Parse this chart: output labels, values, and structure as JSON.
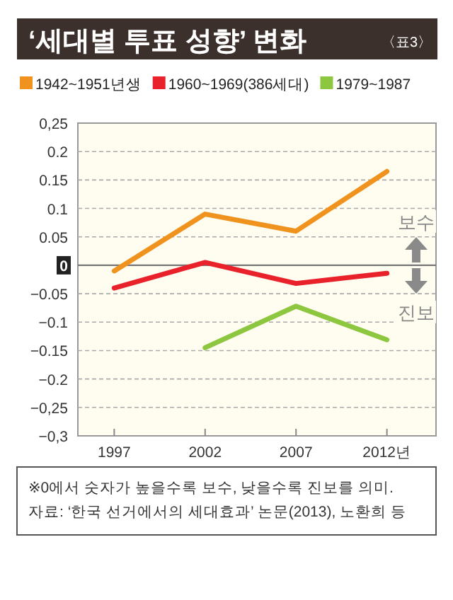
{
  "chart_data": {
    "type": "line",
    "title": "‘세대별 투표 성향’ 변화",
    "x": [
      1997,
      2002,
      2007,
      2012
    ],
    "series": [
      {
        "name": "1942~1951년생",
        "color": "#f0931e",
        "values": [
          -0.01,
          0.09,
          0.06,
          0.165
        ]
      },
      {
        "name": "1960~1969(386세대)",
        "color": "#e8212b",
        "values": [
          -0.04,
          0.005,
          -0.032,
          -0.014
        ]
      },
      {
        "name": "1979~1987",
        "color": "#8dc63f",
        "values": [
          null,
          -0.145,
          -0.072,
          -0.131
        ]
      }
    ],
    "xlim": [
      1995,
      2014.7
    ],
    "xticks": [
      1997,
      2002,
      2007,
      {
        "value": 2012,
        "label": "2012년"
      }
    ],
    "ylim": [
      -0.3,
      0.25
    ],
    "yticks": [
      {
        "value": 0.25,
        "label": "0,25"
      },
      0.2,
      0.15,
      0.1,
      0.05,
      0,
      {
        "value": -0.05,
        "label": "−0.05"
      },
      {
        "value": -0.1,
        "label": "−0.1"
      },
      {
        "value": -0.15,
        "label": "−0.15"
      },
      {
        "value": -0.2,
        "label": "−0.2"
      },
      {
        "value": -0.25,
        "label": "−0,25"
      },
      {
        "value": -0.3,
        "label": "−0,3"
      }
    ],
    "ref_lines": [
      {
        "axis": "y",
        "value": 0,
        "label": null,
        "color": "#777777"
      }
    ],
    "grid": "y",
    "legend": "top",
    "marker": "none",
    "line_style": "solid",
    "annotations": [
      "〈표3〉",
      "보수",
      "진보",
      "※0에서 숫자가 높을수록 보수, 낮을수록 진보를 의미.",
      "자료: ‘한국 선거에서의 세대효과’ 논문(2013), 노환희 등"
    ]
  }
}
